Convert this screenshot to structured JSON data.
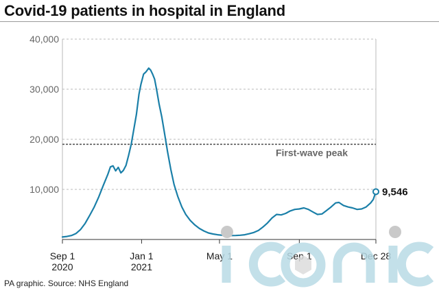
{
  "header": {
    "title": "Covid-19 patients in hospital in England"
  },
  "footer": {
    "source": "PA graphic. Source: NHS England"
  },
  "watermark": {
    "text": "iconic"
  },
  "chart_data": {
    "type": "line",
    "title": "Covid-19 patients in hospital in England",
    "xlabel": "",
    "ylabel": "",
    "xlim": [
      "2020-09-01",
      "2021-12-28"
    ],
    "ylim": [
      0,
      40000
    ],
    "grid": "horizontal dashed",
    "line_color": "#1a7fa8",
    "reference_color": "#555555",
    "y_ticks": [
      {
        "value": 10000,
        "label": "10,000"
      },
      {
        "value": 20000,
        "label": "20,000"
      },
      {
        "value": 30000,
        "label": "30,000"
      },
      {
        "value": 40000,
        "label": "40,000"
      }
    ],
    "x_ticks": [
      {
        "date": "2020-09-01",
        "line1": "Sep 1",
        "line2": "2020"
      },
      {
        "date": "2021-01-01",
        "line1": "Jan 1",
        "line2": "2021"
      },
      {
        "date": "2021-05-01",
        "line1": "May 1",
        "line2": ""
      },
      {
        "date": "2021-09-01",
        "line1": "Sep 1",
        "line2": ""
      },
      {
        "date": "2021-12-28",
        "line1": "Dec 28",
        "line2": ""
      }
    ],
    "reference_line": {
      "value": 19000,
      "label": "First-wave peak"
    },
    "end_point": {
      "date": "2021-12-28",
      "value": 9546,
      "label": "9,546"
    },
    "series": [
      {
        "values": [
          [
            "2020-09-01",
            500
          ],
          [
            "2020-09-08",
            600
          ],
          [
            "2020-09-15",
            800
          ],
          [
            "2020-09-22",
            1200
          ],
          [
            "2020-09-29",
            2000
          ],
          [
            "2020-10-06",
            3200
          ],
          [
            "2020-10-13",
            4800
          ],
          [
            "2020-10-20",
            6500
          ],
          [
            "2020-10-27",
            8500
          ],
          [
            "2020-11-03",
            10800
          ],
          [
            "2020-11-10",
            13000
          ],
          [
            "2020-11-14",
            14500
          ],
          [
            "2020-11-18",
            14700
          ],
          [
            "2020-11-22",
            13700
          ],
          [
            "2020-11-26",
            14400
          ],
          [
            "2020-11-30",
            13300
          ],
          [
            "2020-12-04",
            13800
          ],
          [
            "2020-12-08",
            14800
          ],
          [
            "2020-12-12",
            16800
          ],
          [
            "2020-12-16",
            19000
          ],
          [
            "2020-12-20",
            22000
          ],
          [
            "2020-12-24",
            25000
          ],
          [
            "2020-12-28",
            29000
          ],
          [
            "2020-12-31",
            31000
          ],
          [
            "2021-01-04",
            33000
          ],
          [
            "2021-01-08",
            33500
          ],
          [
            "2021-01-12",
            34200
          ],
          [
            "2021-01-15",
            33800
          ],
          [
            "2021-01-18",
            33000
          ],
          [
            "2021-01-21",
            32000
          ],
          [
            "2021-01-24",
            30000
          ],
          [
            "2021-01-28",
            27000
          ],
          [
            "2021-02-01",
            24500
          ],
          [
            "2021-02-05",
            21500
          ],
          [
            "2021-02-10",
            17500
          ],
          [
            "2021-02-15",
            14000
          ],
          [
            "2021-02-20",
            11000
          ],
          [
            "2021-02-26",
            8500
          ],
          [
            "2021-03-04",
            6500
          ],
          [
            "2021-03-10",
            5000
          ],
          [
            "2021-03-17",
            3800
          ],
          [
            "2021-03-24",
            2900
          ],
          [
            "2021-03-31",
            2200
          ],
          [
            "2021-04-07",
            1700
          ],
          [
            "2021-04-14",
            1300
          ],
          [
            "2021-04-21",
            1100
          ],
          [
            "2021-04-28",
            950
          ],
          [
            "2021-05-05",
            850
          ],
          [
            "2021-05-12",
            800
          ],
          [
            "2021-05-19",
            780
          ],
          [
            "2021-05-26",
            800
          ],
          [
            "2021-06-02",
            850
          ],
          [
            "2021-06-09",
            950
          ],
          [
            "2021-06-16",
            1150
          ],
          [
            "2021-06-23",
            1400
          ],
          [
            "2021-06-30",
            1800
          ],
          [
            "2021-07-07",
            2500
          ],
          [
            "2021-07-14",
            3300
          ],
          [
            "2021-07-21",
            4300
          ],
          [
            "2021-07-28",
            5000
          ],
          [
            "2021-08-04",
            4900
          ],
          [
            "2021-08-11",
            5200
          ],
          [
            "2021-08-18",
            5700
          ],
          [
            "2021-08-25",
            6000
          ],
          [
            "2021-09-01",
            6100
          ],
          [
            "2021-09-08",
            6300
          ],
          [
            "2021-09-15",
            6000
          ],
          [
            "2021-09-22",
            5500
          ],
          [
            "2021-09-29",
            5000
          ],
          [
            "2021-10-06",
            5100
          ],
          [
            "2021-10-13",
            5800
          ],
          [
            "2021-10-20",
            6500
          ],
          [
            "2021-10-27",
            7300
          ],
          [
            "2021-11-01",
            7400
          ],
          [
            "2021-11-08",
            6800
          ],
          [
            "2021-11-15",
            6500
          ],
          [
            "2021-11-22",
            6300
          ],
          [
            "2021-11-29",
            6000
          ],
          [
            "2021-12-06",
            6100
          ],
          [
            "2021-12-13",
            6500
          ],
          [
            "2021-12-20",
            7300
          ],
          [
            "2021-12-24",
            8000
          ],
          [
            "2021-12-28",
            9546
          ]
        ]
      }
    ]
  }
}
